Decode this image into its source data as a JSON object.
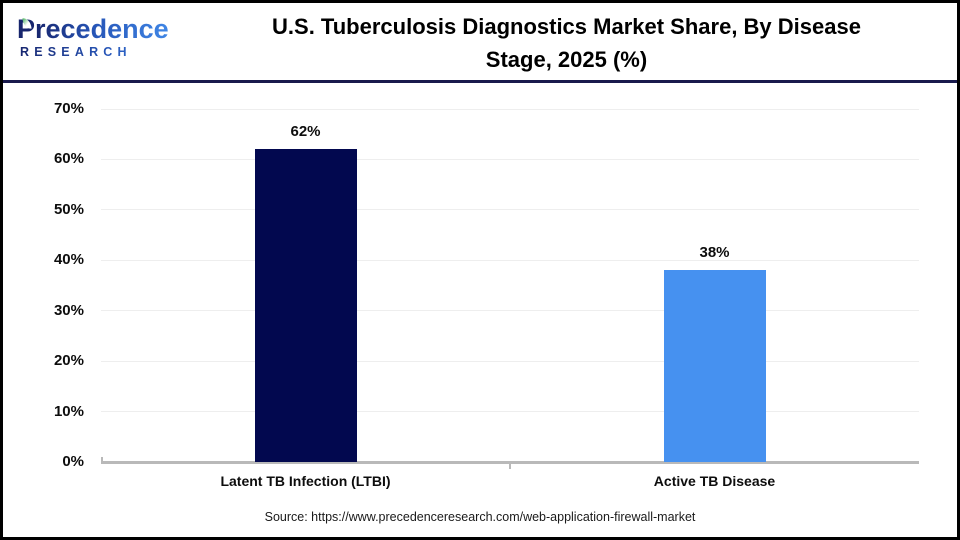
{
  "header": {
    "logo_line1_initial": "P",
    "logo_line1_rest": "recedence",
    "logo_line2": "RESEARCH",
    "title_line1": "U.S. Tuberculosis Diagnostics Market Share, By Disease",
    "title_line2": "Stage, 2025 (%)"
  },
  "chart_data": {
    "type": "bar",
    "title": "U.S. Tuberculosis Diagnostics Market Share, By Disease Stage, 2025 (%)",
    "categories": [
      "Latent TB Infection (LTBI)",
      "Active TB Disease"
    ],
    "values": [
      62,
      38
    ],
    "value_labels": [
      "62%",
      "38%"
    ],
    "bar_colors": [
      "#02084F",
      "#4691F0"
    ],
    "xlabel": "",
    "ylabel": "",
    "ylim": [
      0,
      70
    ],
    "ytick_step": 10,
    "ytick_labels": [
      "0%",
      "10%",
      "20%",
      "30%",
      "40%",
      "50%",
      "60%",
      "70%"
    ],
    "grid": "horizontal",
    "legend": "none",
    "gridline_color": "#eeeeee",
    "axis_color": "#b9b9b9",
    "label_color": "#0d0d0d"
  },
  "footer": {
    "source": "Source: https://www.precedenceresearch.com/web-application-firewall-market"
  }
}
